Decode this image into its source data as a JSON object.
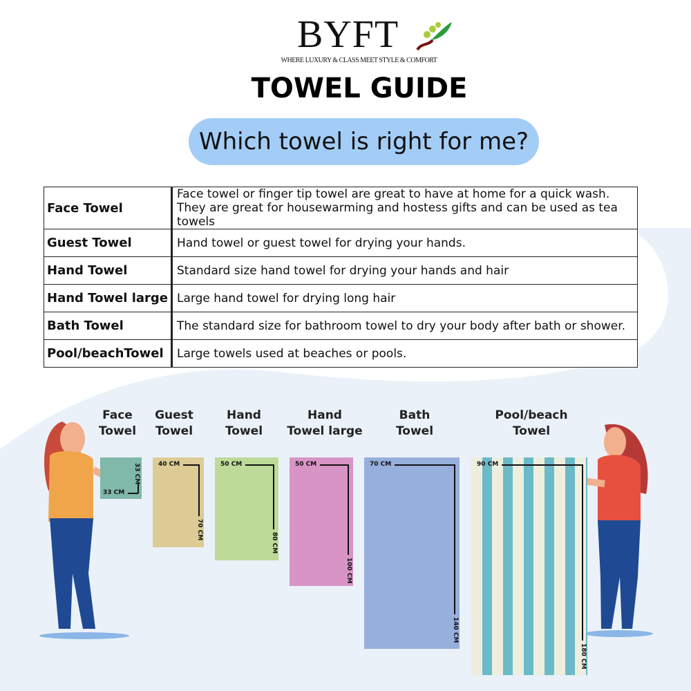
{
  "brand": {
    "name": "BYFT",
    "tagline": "WHERE LUXURY & CLASS MEET STYLE & COMFORT"
  },
  "title": "TOWEL GUIDE",
  "question": "Which towel is right for me?",
  "table": [
    {
      "name": "Face Towel",
      "desc": [
        "Face towel or finger tip towel are great to have at home for a quick wash.",
        "They are great for housewarming and hostess gifts and can be used as tea towels"
      ]
    },
    {
      "name": "Guest Towel",
      "desc": [
        "Hand towel or guest towel for drying your hands."
      ]
    },
    {
      "name": "Hand Towel",
      "desc": [
        "Standard size hand towel for drying your hands and hair"
      ]
    },
    {
      "name": "Hand Towel large",
      "desc": [
        "Large hand towel for drying long hair"
      ]
    },
    {
      "name": "Bath Towel",
      "desc": [
        "The standard size for bathroom towel to dry your body after bath or shower."
      ]
    },
    {
      "name": "Pool/beachTowel",
      "desc": [
        "Large towels used at beaches or pools."
      ]
    }
  ],
  "towels": [
    {
      "label": [
        "Face",
        "Towel"
      ],
      "width": "33 CM",
      "height": "33 CM",
      "color": "#80b8aa"
    },
    {
      "label": [
        "Guest",
        "Towel"
      ],
      "width": "40 CM",
      "height": "70 CM",
      "color": "#dccb94"
    },
    {
      "label": [
        "Hand",
        "Towel"
      ],
      "width": "50 CM",
      "height": "80 CM",
      "color": "#bdda98"
    },
    {
      "label": [
        "Hand",
        "Towel large"
      ],
      "width": "50 CM",
      "height": "100 CM",
      "color": "#d994c6"
    },
    {
      "label": [
        "Bath",
        "Towel"
      ],
      "width": "70 CM",
      "height": "140 CM",
      "color": "#97afdc"
    },
    {
      "label": [
        "Pool/beach",
        "Towel"
      ],
      "width": "90 CM",
      "height": "180 CM",
      "color": "#eeeedf",
      "stripe": "#6bbac8"
    }
  ],
  "colors": {
    "pill": "#a3cdf6",
    "background_shape": "#eaf1f9"
  }
}
